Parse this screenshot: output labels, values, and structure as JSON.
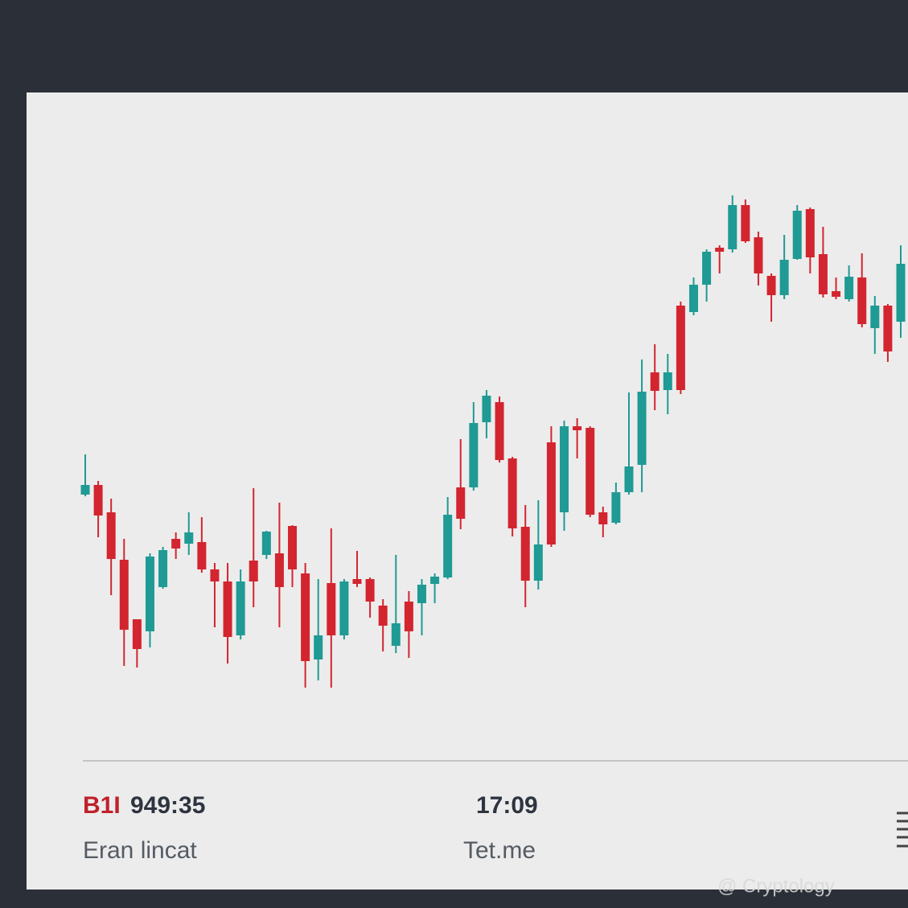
{
  "chart_data": {
    "type": "candlestick",
    "up_color": "#1f9a94",
    "down_color": "#d3252f",
    "ylim": [
      100,
      800
    ],
    "open": [
      385,
      397,
      363,
      304,
      230,
      215,
      270,
      330,
      324,
      326,
      292,
      277,
      210,
      303,
      310,
      312,
      346,
      287,
      180,
      275,
      210,
      280,
      280,
      247,
      197,
      252,
      250,
      274,
      282,
      394,
      394,
      475,
      500,
      430,
      345,
      278,
      450,
      363,
      470,
      468,
      363,
      350,
      388,
      422,
      537,
      515,
      620,
      612,
      646,
      692,
      690,
      745,
      705,
      657,
      633,
      678,
      740,
      684,
      638,
      628,
      655,
      592,
      620,
      600
    ],
    "high": [
      435,
      402,
      380,
      330,
      230,
      312,
      320,
      338,
      363,
      357,
      300,
      300,
      292,
      393,
      340,
      375,
      347,
      300,
      280,
      343,
      280,
      315,
      282,
      255,
      310,
      265,
      280,
      287,
      382,
      454,
      500,
      515,
      507,
      432,
      372,
      378,
      470,
      477,
      480,
      470,
      370,
      400,
      512,
      553,
      572,
      560,
      625,
      655,
      690,
      695,
      757,
      752,
      712,
      660,
      708,
      745,
      742,
      718,
      655,
      670,
      685,
      632,
      622,
      695
    ],
    "low": [
      383,
      332,
      260,
      172,
      170,
      195,
      268,
      305,
      310,
      288,
      220,
      175,
      205,
      245,
      305,
      220,
      270,
      145,
      154,
      145,
      205,
      270,
      232,
      190,
      188,
      182,
      210,
      250,
      280,
      342,
      390,
      455,
      425,
      333,
      245,
      267,
      320,
      340,
      430,
      357,
      332,
      348,
      385,
      388,
      490,
      485,
      510,
      608,
      625,
      660,
      686,
      698,
      645,
      600,
      628,
      677,
      660,
      630,
      628,
      625,
      593,
      560,
      550,
      580
    ],
    "close": [
      397,
      359,
      305,
      217,
      193,
      308,
      316,
      318,
      338,
      292,
      277,
      208,
      277,
      277,
      339,
      270,
      292,
      178,
      210,
      210,
      277,
      274,
      252,
      222,
      225,
      215,
      273,
      283,
      360,
      355,
      474,
      508,
      428,
      343,
      278,
      323,
      323,
      470,
      465,
      360,
      348,
      388,
      420,
      513,
      514,
      537,
      515,
      646,
      687,
      687,
      745,
      700,
      660,
      633,
      677,
      738,
      680,
      634,
      631,
      656,
      597,
      620,
      563,
      672
    ]
  },
  "footer": {
    "symbol": "B1I",
    "price": "949:35",
    "time": "17:09",
    "left_label": "Eran lincat",
    "center_label": "Tet.me"
  },
  "watermark": "@ Cryptology"
}
